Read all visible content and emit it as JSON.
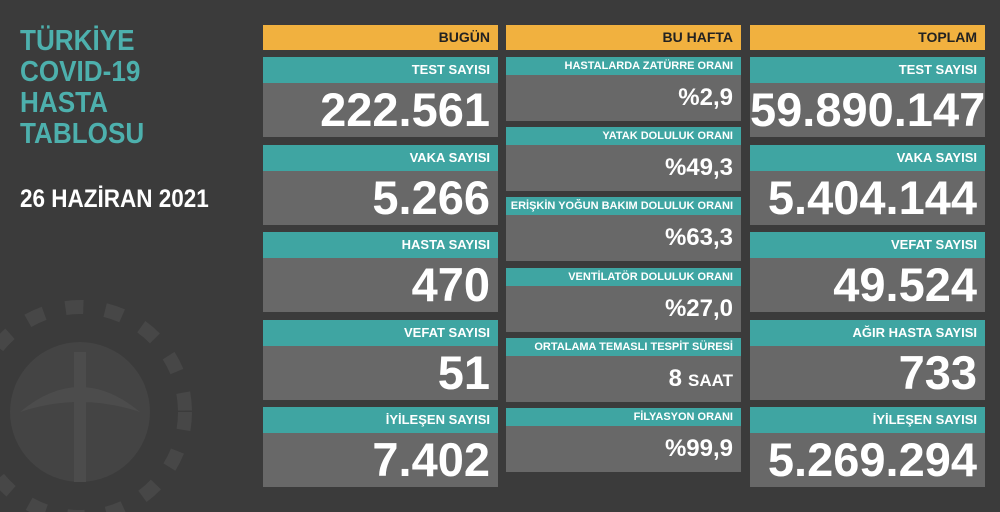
{
  "title": [
    "TÜRKİYE",
    "COVID-19",
    "HASTA",
    "TABLOSU"
  ],
  "date": "26 HAZİRAN 2021",
  "columns": [
    {
      "header": "BUGÜN",
      "cards": [
        {
          "label": "TEST SAYISI",
          "value": "222.561"
        },
        {
          "label": "VAKA SAYISI",
          "value": "5.266"
        },
        {
          "label": "HASTA SAYISI",
          "value": "470"
        },
        {
          "label": "VEFAT SAYISI",
          "value": "51"
        },
        {
          "label": "İYİLEŞEN SAYISI",
          "value": "7.402"
        }
      ]
    },
    {
      "header": "BU HAFTA",
      "cards": [
        {
          "label": "HASTALARDA ZATÜRRE ORANI",
          "value": "%2,9"
        },
        {
          "label": "YATAK DOLULUK ORANI",
          "value": "%49,3"
        },
        {
          "label": "ERİŞKİN YOĞUN BAKIM DOLULUK ORANI",
          "value": "%63,3"
        },
        {
          "label": "VENTİLATÖR DOLULUK ORANI",
          "value": "%27,0"
        },
        {
          "label": "ORTALAMA TEMASLI TESPİT SÜRESİ",
          "value": "8",
          "unit": "SAAT"
        },
        {
          "label": "FİLYASYON ORANI",
          "value": "%99,9"
        }
      ]
    },
    {
      "header": "TOPLAM",
      "cards": [
        {
          "label": "TEST SAYISI",
          "value": "59.890.147"
        },
        {
          "label": "VAKA SAYISI",
          "value": "5.404.144"
        },
        {
          "label": "VEFAT SAYISI",
          "value": "49.524"
        },
        {
          "label": "AĞIR HASTA SAYISI",
          "value": "733"
        },
        {
          "label": "İYİLEŞEN SAYISI",
          "value": "5.269.294"
        }
      ]
    }
  ]
}
